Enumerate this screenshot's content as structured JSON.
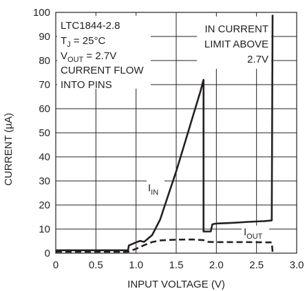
{
  "chart_data": {
    "type": "line",
    "title": "",
    "xlabel": "INPUT VOLTAGE (V)",
    "ylabel": "CURRENT (µA)",
    "xlim": [
      0,
      3.0
    ],
    "ylim": [
      0,
      100
    ],
    "x_ticks": [
      "0",
      "0.5",
      "1.0",
      "1.5",
      "2.0",
      "2.5",
      "3.0"
    ],
    "y_ticks": [
      "0",
      "10",
      "20",
      "30",
      "40",
      "50",
      "60",
      "70",
      "80",
      "90",
      "100"
    ],
    "grid": true,
    "colors": {
      "line": "#231f20",
      "grid": "#231f20",
      "background": "#ffffff"
    },
    "conditions": {
      "part": "LTC1844-2.8",
      "temp_main": "T",
      "temp_sub": "J",
      "temp_rest": " = 25°C",
      "vout_main": "V",
      "vout_sub": "OUT",
      "vout_rest": " = 2.7V",
      "flow_line1": "CURRENT FLOW",
      "flow_line2": "INTO PINS"
    },
    "limit_note": {
      "line1": "IN CURRENT",
      "line2": "LIMIT ABOVE",
      "line3": "2.7V"
    },
    "series": [
      {
        "name": "I_IN",
        "label_main": "I",
        "label_sub": "IN",
        "style": "solid",
        "points": [
          [
            0,
            1.2
          ],
          [
            0.9,
            1.2
          ],
          [
            0.91,
            3.2
          ],
          [
            1.0,
            4.5
          ],
          [
            1.05,
            5.1
          ],
          [
            1.1,
            4.7
          ],
          [
            1.2,
            7.5
          ],
          [
            1.3,
            14.0
          ],
          [
            1.4,
            24.0
          ],
          [
            1.5,
            34.0
          ],
          [
            1.6,
            45.0
          ],
          [
            1.7,
            56.0
          ],
          [
            1.8,
            67.0
          ],
          [
            1.84,
            72.0
          ],
          [
            1.84,
            9.0
          ],
          [
            1.93,
            9.0
          ],
          [
            1.95,
            12.0
          ],
          [
            2.0,
            12.3
          ],
          [
            2.2,
            12.6
          ],
          [
            2.4,
            13.0
          ],
          [
            2.6,
            13.3
          ],
          [
            2.69,
            13.6
          ],
          [
            2.7,
            99
          ]
        ]
      },
      {
        "name": "I_OUT",
        "label_main": "I",
        "label_sub": "OUT",
        "style": "dashed",
        "points": [
          [
            0,
            0.6
          ],
          [
            0.9,
            0.6
          ],
          [
            1.0,
            1.8
          ],
          [
            1.1,
            3.3
          ],
          [
            1.2,
            4.6
          ],
          [
            1.3,
            5.3
          ],
          [
            1.5,
            5.6
          ],
          [
            1.7,
            5.7
          ],
          [
            1.84,
            5.4
          ],
          [
            1.9,
            4.7
          ],
          [
            2.0,
            4.6
          ],
          [
            2.2,
            4.6
          ],
          [
            2.4,
            4.6
          ],
          [
            2.6,
            4.5
          ],
          [
            2.69,
            4.5
          ],
          [
            2.7,
            0.6
          ]
        ]
      }
    ]
  }
}
